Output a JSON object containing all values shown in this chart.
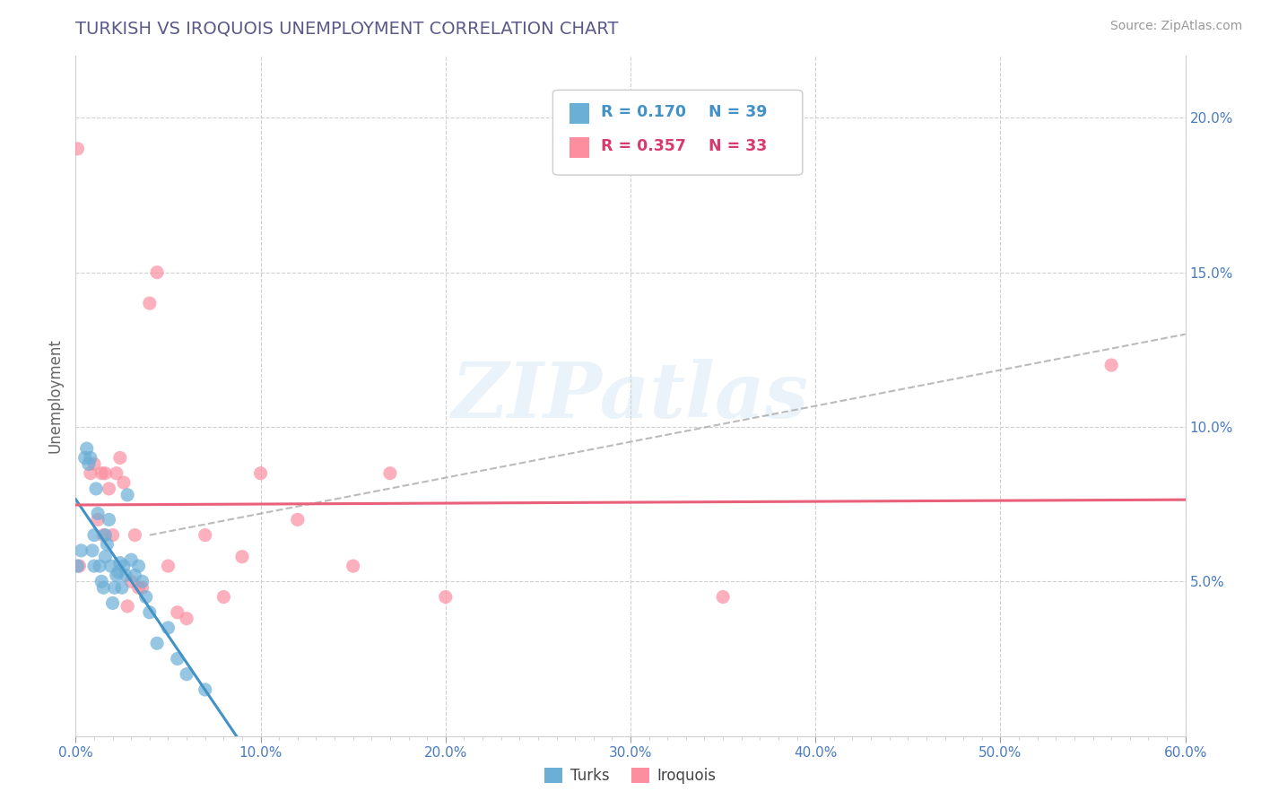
{
  "title": "TURKISH VS IROQUOIS UNEMPLOYMENT CORRELATION CHART",
  "source_text": "Source: ZipAtlas.com",
  "ylabel": "Unemployment",
  "xlim": [
    0.0,
    0.6
  ],
  "ylim": [
    0.0,
    0.22
  ],
  "xticks": [
    0.0,
    0.1,
    0.2,
    0.3,
    0.4,
    0.5,
    0.6
  ],
  "xticklabels": [
    "0.0%",
    "10.0%",
    "20.0%",
    "30.0%",
    "40.0%",
    "50.0%",
    "60.0%"
  ],
  "yticks": [
    0.0,
    0.05,
    0.1,
    0.15,
    0.2
  ],
  "yticklabels": [
    "",
    "5.0%",
    "10.0%",
    "15.0%",
    "20.0%"
  ],
  "turks_color": "#6baed6",
  "iroquois_color": "#fc8ea0",
  "turks_R": 0.17,
  "turks_N": 39,
  "iroquois_R": 0.357,
  "iroquois_N": 33,
  "legend_label_turks": "Turks",
  "legend_label_iroquois": "Iroquois",
  "turks_x": [
    0.001,
    0.003,
    0.005,
    0.006,
    0.007,
    0.008,
    0.009,
    0.01,
    0.01,
    0.011,
    0.012,
    0.013,
    0.014,
    0.015,
    0.016,
    0.016,
    0.017,
    0.018,
    0.019,
    0.02,
    0.021,
    0.022,
    0.023,
    0.024,
    0.025,
    0.026,
    0.027,
    0.028,
    0.03,
    0.032,
    0.034,
    0.036,
    0.038,
    0.04,
    0.044,
    0.05,
    0.055,
    0.06,
    0.07
  ],
  "turks_y": [
    0.055,
    0.06,
    0.09,
    0.093,
    0.088,
    0.09,
    0.06,
    0.055,
    0.065,
    0.08,
    0.072,
    0.055,
    0.05,
    0.048,
    0.065,
    0.058,
    0.062,
    0.07,
    0.055,
    0.043,
    0.048,
    0.052,
    0.053,
    0.056,
    0.048,
    0.055,
    0.052,
    0.078,
    0.057,
    0.052,
    0.055,
    0.05,
    0.045,
    0.04,
    0.03,
    0.035,
    0.025,
    0.02,
    0.015
  ],
  "iroquois_x": [
    0.001,
    0.002,
    0.008,
    0.01,
    0.012,
    0.014,
    0.015,
    0.016,
    0.018,
    0.02,
    0.022,
    0.024,
    0.026,
    0.028,
    0.03,
    0.032,
    0.034,
    0.036,
    0.04,
    0.044,
    0.05,
    0.055,
    0.06,
    0.07,
    0.08,
    0.09,
    0.1,
    0.12,
    0.15,
    0.17,
    0.2,
    0.35,
    0.56
  ],
  "iroquois_y": [
    0.19,
    0.055,
    0.085,
    0.088,
    0.07,
    0.085,
    0.065,
    0.085,
    0.08,
    0.065,
    0.085,
    0.09,
    0.082,
    0.042,
    0.05,
    0.065,
    0.048,
    0.048,
    0.14,
    0.15,
    0.055,
    0.04,
    0.038,
    0.065,
    0.045,
    0.058,
    0.085,
    0.07,
    0.055,
    0.085,
    0.045,
    0.045,
    0.12
  ],
  "watermark": "ZIPatlas",
  "grid_color": "#d0d0d0",
  "title_color": "#5a5a8a",
  "axis_label_color": "#666666",
  "tick_color": "#4a7bbf",
  "source_color": "#999999",
  "legend_R_color_turks": "#4292c6",
  "legend_R_color_iroquois": "#d63b6e",
  "turks_line_color": "#4292c6",
  "iroquois_line_color": "#e8607a",
  "dash_line_color": "#aaaaaa"
}
